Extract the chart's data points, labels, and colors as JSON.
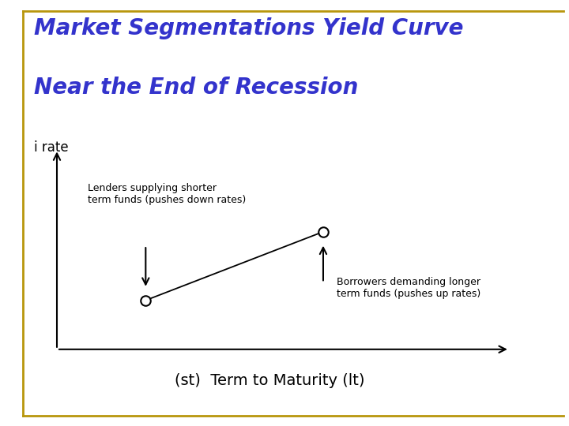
{
  "title_line1": "Market Segmentations Yield Curve",
  "title_line2": "Near the End of Recession",
  "title_color": "#3333cc",
  "title_fontsize": 20,
  "title_style": "italic",
  "title_weight": "bold",
  "ylabel": "i rate",
  "xlabel": "(st)  Term to Maturity (lt)",
  "xlabel_fontsize": 14,
  "ylabel_fontsize": 12,
  "background_color": "#ffffff",
  "border_color": "#b8960c",
  "point_st": [
    0.2,
    0.25
  ],
  "point_lt": [
    0.6,
    0.6
  ],
  "lender_text": "Lenders supplying shorter\nterm funds (pushes down rates)",
  "borrower_text": "Borrowers demanding longer\nterm funds (pushes up rates)"
}
